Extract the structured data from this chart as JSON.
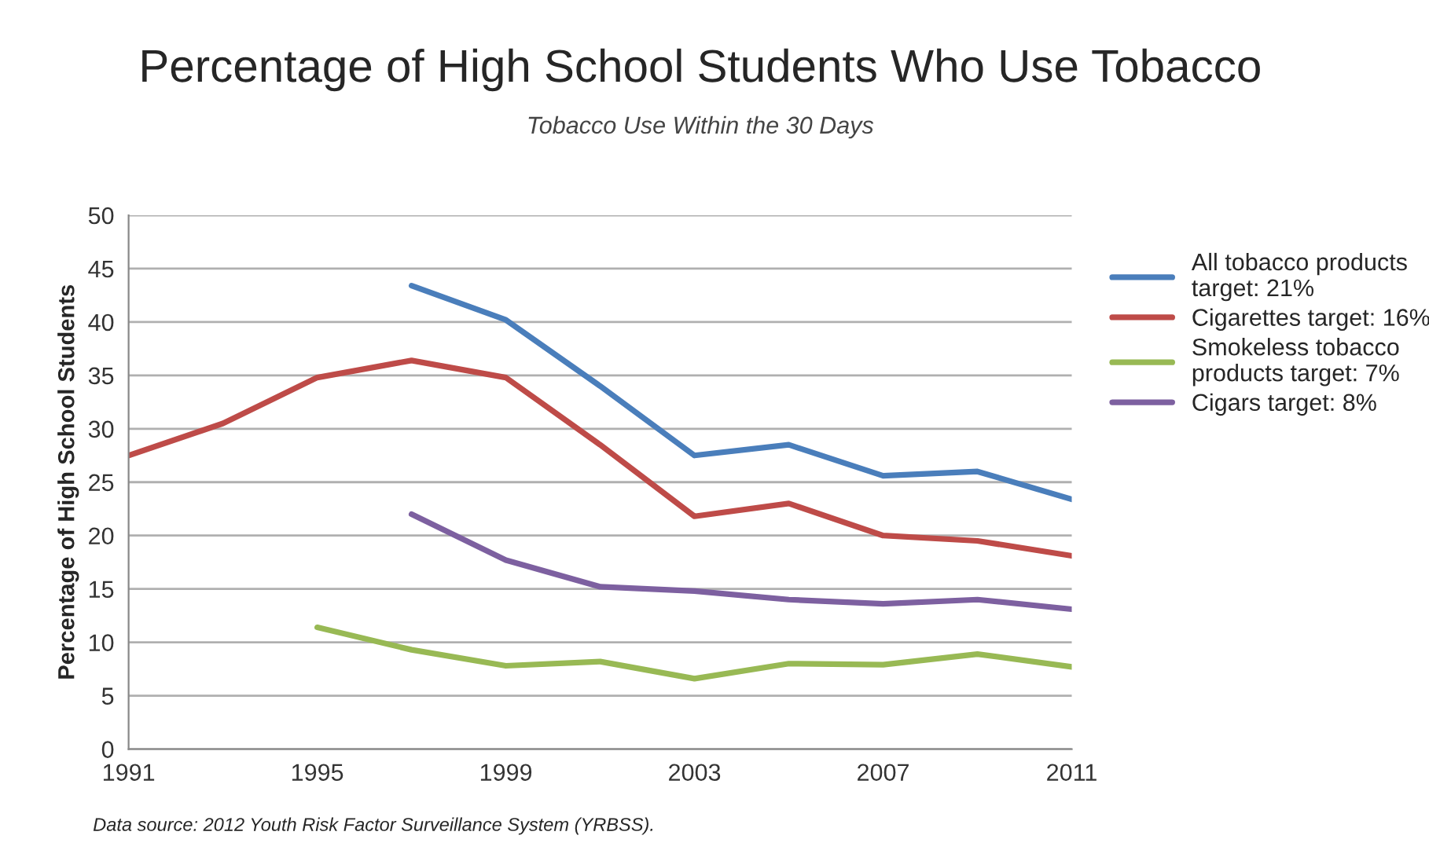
{
  "chart_data": {
    "type": "line",
    "title": "Percentage of High School Students Who Use Tobacco",
    "subtitle": "Tobacco Use Within the 30 Days",
    "ylabel": "Percentage of High School Students",
    "x": [
      1991,
      1993,
      1995,
      1997,
      1999,
      2001,
      2003,
      2005,
      2007,
      2009,
      2011
    ],
    "series": [
      {
        "name": "All tobacco products\ntarget: 21%",
        "color": "#4a7ebb",
        "values": [
          null,
          null,
          null,
          43.4,
          40.2,
          34.0,
          27.5,
          28.5,
          25.6,
          26.0,
          23.4
        ]
      },
      {
        "name": "Cigarettes target: 16%",
        "color": "#be4b48",
        "values": [
          27.5,
          30.5,
          34.8,
          36.4,
          34.8,
          28.5,
          21.8,
          23.0,
          20.0,
          19.5,
          18.1
        ]
      },
      {
        "name": "Smokeless tobacco\nproducts target: 7%",
        "color": "#98b954",
        "values": [
          null,
          null,
          11.4,
          9.3,
          7.8,
          8.2,
          6.6,
          8.0,
          7.9,
          8.9,
          7.7
        ]
      },
      {
        "name": "Cigars target: 8%",
        "color": "#7d60a0",
        "values": [
          null,
          null,
          null,
          22.0,
          17.7,
          15.2,
          14.8,
          14.0,
          13.6,
          14.0,
          13.1
        ]
      }
    ],
    "xlim": [
      1991,
      2011
    ],
    "xticks": [
      1991,
      1995,
      1999,
      2003,
      2007,
      2011
    ],
    "ylim": [
      0,
      50
    ],
    "yticks": [
      0,
      5,
      10,
      15,
      20,
      25,
      30,
      35,
      40,
      45,
      50
    ],
    "grid": "y",
    "legend": "right",
    "line_style": "solid",
    "annotations": [
      "Data source: 2012 Youth Risk Factor Surveillance System (YRBSS)."
    ]
  }
}
